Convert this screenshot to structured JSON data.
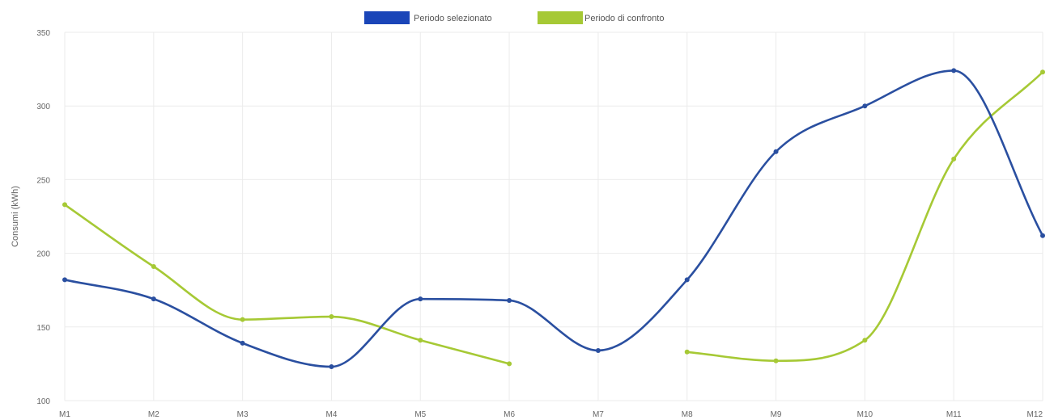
{
  "chart_data": {
    "type": "line",
    "title": "",
    "xlabel": "",
    "ylabel": "Consumi (kWh)",
    "categories": [
      "M1",
      "M2",
      "M3",
      "M4",
      "M5",
      "M6",
      "M7",
      "M8",
      "M9",
      "M10",
      "M11",
      "M12"
    ],
    "ylim": [
      100,
      350
    ],
    "yticks": [
      "100",
      "150",
      "200",
      "250",
      "300",
      "350"
    ],
    "grid": true,
    "legend_position": "top-center",
    "smooth": true,
    "series": [
      {
        "name": "Periodo selezionato",
        "color": "#2a4fa0",
        "legend_color": "#1a45b8",
        "values": [
          182,
          169,
          139,
          123,
          169,
          168,
          134,
          182,
          269,
          300,
          324,
          212
        ]
      },
      {
        "name": "Periodo di confronto",
        "color": "#a6c935",
        "legend_color": "#a6c935",
        "values": [
          233,
          191,
          155,
          157,
          141,
          125,
          null,
          133,
          127,
          141,
          264,
          323
        ]
      }
    ]
  }
}
